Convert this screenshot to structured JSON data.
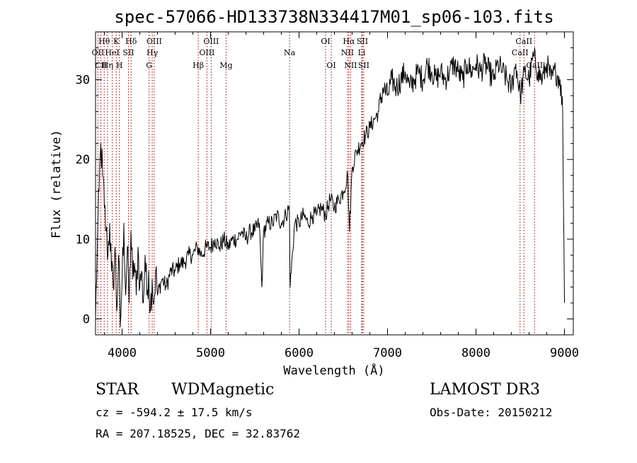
{
  "chart_data": {
    "type": "line",
    "title": "spec-57066-HD133738N334417M01_sp06-103.fits",
    "xlabel": "Wavelength (Å)",
    "ylabel": "Flux (relative)",
    "xlim": [
      3700,
      9100
    ],
    "ylim": [
      -2,
      36
    ],
    "x_ticks": [
      4000,
      5000,
      6000,
      7000,
      8000,
      9000
    ],
    "x_tick_labels": [
      "4000",
      "5000",
      "6000",
      "7000",
      "8000",
      "9000"
    ],
    "y_ticks": [
      0,
      10,
      20,
      30
    ],
    "y_tick_labels": [
      "0",
      "10",
      "20",
      "30"
    ],
    "grid": false,
    "series": [
      {
        "name": "spectrum",
        "color": "#000000",
        "x": [
          3700,
          3720,
          3740,
          3760,
          3780,
          3800,
          3820,
          3840,
          3860,
          3880,
          3900,
          3920,
          3940,
          3960,
          3980,
          4000,
          4020,
          4040,
          4060,
          4080,
          4100,
          4120,
          4140,
          4160,
          4180,
          4200,
          4220,
          4240,
          4260,
          4280,
          4300,
          4320,
          4340,
          4360,
          4380,
          4400,
          4450,
          4500,
          4550,
          4600,
          4650,
          4700,
          4750,
          4800,
          4850,
          4900,
          4950,
          5000,
          5050,
          5100,
          5150,
          5200,
          5250,
          5300,
          5350,
          5400,
          5450,
          5500,
          5550,
          5580,
          5600,
          5650,
          5700,
          5750,
          5800,
          5850,
          5890,
          5900,
          5950,
          6000,
          6050,
          6100,
          6150,
          6200,
          6250,
          6300,
          6350,
          6400,
          6450,
          6500,
          6550,
          6570,
          6600,
          6650,
          6700,
          6750,
          6800,
          6850,
          6900,
          6950,
          7000,
          7050,
          7100,
          7150,
          7200,
          7250,
          7300,
          7350,
          7400,
          7450,
          7500,
          7550,
          7600,
          7650,
          7700,
          7750,
          7800,
          7850,
          7900,
          7950,
          8000,
          8050,
          8100,
          8150,
          8200,
          8250,
          8300,
          8350,
          8400,
          8450,
          8500,
          8550,
          8600,
          8650,
          8700,
          8750,
          8800,
          8850,
          8900,
          8950,
          8980,
          9000
        ],
        "y": [
          0,
          9,
          16,
          22,
          18,
          14,
          11,
          8,
          12,
          6,
          4,
          9,
          1,
          8,
          -1,
          5,
          12,
          3,
          9,
          2,
          11,
          5,
          7,
          3,
          9,
          4,
          6,
          2,
          8,
          3,
          6,
          1,
          5,
          2,
          6,
          3,
          5,
          4,
          6,
          6,
          7,
          7,
          8,
          8,
          9,
          8,
          9,
          9,
          10,
          9,
          10,
          9,
          10,
          10,
          11,
          10,
          11,
          11,
          12,
          4,
          11,
          12,
          12,
          13,
          12,
          13,
          14,
          4,
          12,
          12,
          13,
          12,
          13,
          13,
          14,
          13,
          15,
          14,
          15,
          16,
          18,
          11,
          19,
          21,
          22,
          23,
          24,
          25,
          26,
          29,
          28,
          30,
          29,
          30,
          31,
          29,
          30,
          31,
          30,
          32,
          31,
          30,
          31,
          30,
          31,
          32,
          31,
          30,
          32,
          31,
          32,
          31,
          32,
          31,
          30,
          32,
          31,
          30,
          29,
          32,
          28,
          31,
          30,
          33,
          31,
          30,
          32,
          30,
          31,
          30,
          26,
          2
        ]
      }
    ],
    "line_markers": [
      {
        "name": "Hθ",
        "x": 3798,
        "row": 1
      },
      {
        "name": "K",
        "x": 3934,
        "row": 1
      },
      {
        "name": "Hδ",
        "x": 4102,
        "row": 1
      },
      {
        "name": "OII",
        "x": 3727,
        "row": 2
      },
      {
        "name": "HeI",
        "x": 3889,
        "row": 2
      },
      {
        "name": "SII",
        "x": 4072,
        "row": 2
      },
      {
        "name": "CII",
        "x": 3760,
        "row": 3
      },
      {
        "name": "Hη",
        "x": 3835,
        "row": 3
      },
      {
        "name": "H",
        "x": 3969,
        "row": 3
      },
      {
        "name": "OIII",
        "x": 4363,
        "row": 1
      },
      {
        "name": "Hγ",
        "x": 4341,
        "row": 2
      },
      {
        "name": "G",
        "x": 4305,
        "row": 3
      },
      {
        "name": "OIII",
        "x": 5007,
        "row": 1
      },
      {
        "name": "OIII",
        "x": 4959,
        "row": 2
      },
      {
        "name": "Hβ",
        "x": 4861,
        "row": 3
      },
      {
        "name": "Mg",
        "x": 5175,
        "row": 3
      },
      {
        "name": "Na",
        "x": 5893,
        "row": 2
      },
      {
        "name": "OI",
        "x": 6300,
        "row": 1
      },
      {
        "name": "OI",
        "x": 6364,
        "row": 3
      },
      {
        "name": "Hα",
        "x": 6563,
        "row": 1
      },
      {
        "name": "NII",
        "x": 6548,
        "row": 2
      },
      {
        "name": "NII",
        "x": 6583,
        "row": 3
      },
      {
        "name": "SII",
        "x": 6716,
        "row": 1
      },
      {
        "name": "Li",
        "x": 6708,
        "row": 2
      },
      {
        "name": "SII",
        "x": 6731,
        "row": 3
      },
      {
        "name": "CaII",
        "x": 8542,
        "row": 1
      },
      {
        "name": "CaII",
        "x": 8498,
        "row": 2
      },
      {
        "name": "CaII",
        "x": 8662,
        "row": 3
      }
    ],
    "marker_color": "#a00000",
    "line_color": "#000000"
  },
  "info": {
    "object_class": "STAR",
    "subclass": "WDMagnetic",
    "survey": "LAMOST DR3",
    "redshift_text": "cz = -594.2 ± 17.5 km/s",
    "obs_date_text": "Obs-Date: 20150212",
    "coords_text": "RA = 207.18525, DEC =  32.83762"
  }
}
